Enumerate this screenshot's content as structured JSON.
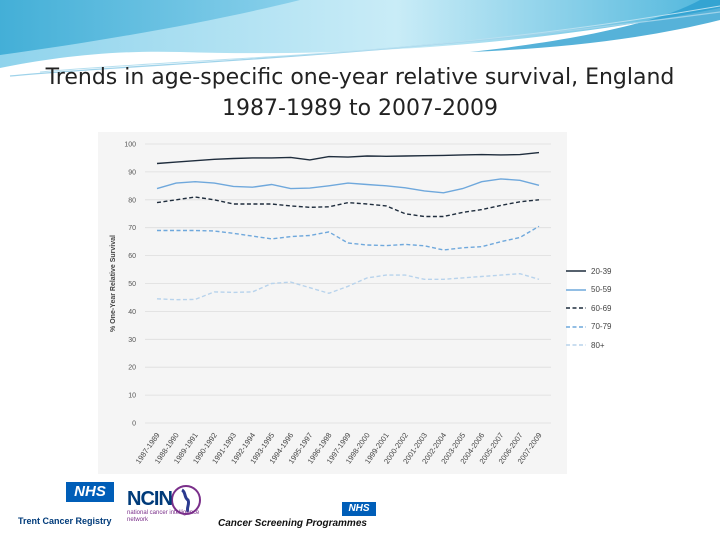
{
  "slide": {
    "title_line1": "Trends in age-specific one-year relative survival, England",
    "title_line2": "1987-1989 to 2007-2009"
  },
  "chart_data": {
    "type": "line",
    "title": "",
    "xlabel": "",
    "ylabel": "% One-Year Relative Survival",
    "ylim": [
      0,
      100
    ],
    "yticks": [
      0,
      10,
      20,
      30,
      40,
      50,
      60,
      70,
      80,
      90,
      100
    ],
    "grid": true,
    "legend_position": "right",
    "categories": [
      "1987-1989",
      "1988-1990",
      "1989-1991",
      "1990-1992",
      "1991-1993",
      "1992-1994",
      "1993-1995",
      "1994-1996",
      "1995-1997",
      "1996-1998",
      "1997-1999",
      "1998-2000",
      "1999-2001",
      "2000-2002",
      "2001-2003",
      "2002-2004",
      "2003-2005",
      "2004-2006",
      "2005-2007",
      "2006-2007",
      "2007-2009"
    ],
    "series": [
      {
        "name": "20-39",
        "color": "#1f2d3d",
        "dash": "solid",
        "values": [
          93,
          93.5,
          94,
          94.5,
          94.8,
          95,
          95,
          95.2,
          94.3,
          95.5,
          95.3,
          95.7,
          95.6,
          95.7,
          95.8,
          95.9,
          96.1,
          96.2,
          96.1,
          96.2,
          96.9
        ]
      },
      {
        "name": "50-59",
        "color": "#6fa8dc",
        "dash": "solid",
        "values": [
          84,
          86,
          86.5,
          86,
          84.8,
          84.5,
          85.5,
          84,
          84.2,
          85,
          86,
          85.5,
          85,
          84.3,
          83.2,
          82.5,
          84,
          86.5,
          87.5,
          87,
          85.2
        ]
      },
      {
        "name": "60-69",
        "color": "#1f2d3d",
        "dash": "dash",
        "values": [
          79,
          80,
          81,
          80,
          78.5,
          78.5,
          78.5,
          77.8,
          77.3,
          77.5,
          79,
          78.5,
          77.8,
          75,
          74,
          74,
          75.5,
          76.5,
          78,
          79.3,
          80
        ]
      },
      {
        "name": "70-79",
        "color": "#6fa8dc",
        "dash": "dash",
        "values": [
          69,
          69,
          69,
          68.8,
          68,
          67,
          66,
          66.8,
          67.2,
          68.5,
          64.5,
          63.8,
          63.6,
          64,
          63.5,
          62,
          62.8,
          63.2,
          65,
          66.5,
          70.5
        ]
      },
      {
        "name": "80+",
        "color": "#b8d3ec",
        "dash": "dash",
        "values": [
          44.5,
          44.2,
          44.3,
          47,
          46.8,
          47,
          50,
          50.5,
          48.5,
          46.5,
          49,
          52,
          53,
          53,
          51.5,
          51.5,
          52,
          52.5,
          53,
          53.5,
          51.5
        ]
      }
    ]
  },
  "logos": {
    "nhs_text": "NHS",
    "trent_label": "Trent Cancer Registry",
    "ncin_text": "NCIN",
    "ncin_sub": "national cancer intelligence network",
    "csp_nhs_text": "NHS",
    "csp_label": "Cancer Screening Programmes"
  }
}
